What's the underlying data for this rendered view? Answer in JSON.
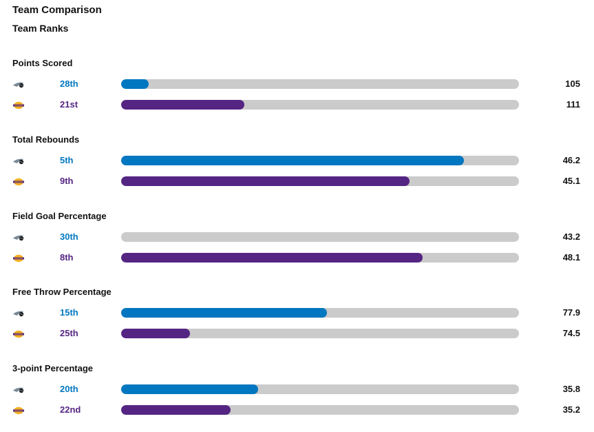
{
  "header": {
    "title": "Team Comparison",
    "subtitle": "Team Ranks"
  },
  "colors": {
    "team_a": "#0077c0",
    "team_b": "#552583",
    "track": "#cbcbcb"
  },
  "teams": [
    {
      "logo_icon": "magic-logo-icon",
      "color": "#0077c0"
    },
    {
      "logo_icon": "lakers-logo-icon",
      "color": "#552583"
    }
  ],
  "categories": [
    {
      "title": "Points Scored",
      "rows": [
        {
          "rank": "28th",
          "value": "105",
          "fill": 0.07
        },
        {
          "rank": "21st",
          "value": "111",
          "fill": 0.31
        }
      ]
    },
    {
      "title": "Total Rebounds",
      "rows": [
        {
          "rank": "5th",
          "value": "46.2",
          "fill": 0.862
        },
        {
          "rank": "9th",
          "value": "45.1",
          "fill": 0.725
        }
      ]
    },
    {
      "title": "Field Goal Percentage",
      "rows": [
        {
          "rank": "30th",
          "value": "43.2",
          "fill": 0.0
        },
        {
          "rank": "8th",
          "value": "48.1",
          "fill": 0.758
        }
      ]
    },
    {
      "title": "Free Throw Percentage",
      "rows": [
        {
          "rank": "15th",
          "value": "77.9",
          "fill": 0.517
        },
        {
          "rank": "25th",
          "value": "74.5",
          "fill": 0.173
        }
      ]
    },
    {
      "title": "3-point Percentage",
      "rows": [
        {
          "rank": "20th",
          "value": "35.8",
          "fill": 0.344
        },
        {
          "rank": "22nd",
          "value": "35.2",
          "fill": 0.275
        }
      ]
    }
  ]
}
